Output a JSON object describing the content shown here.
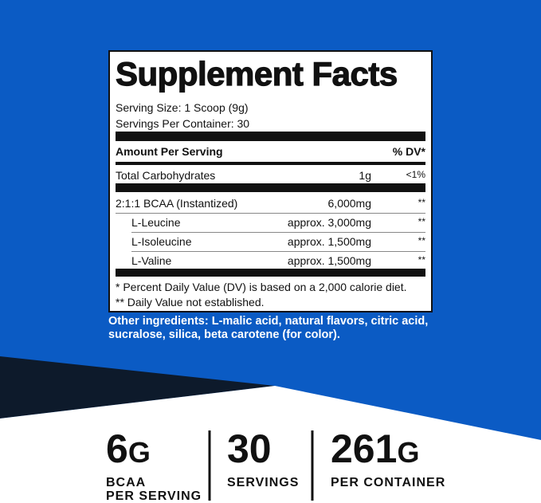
{
  "panel": {
    "title": "Supplement Facts",
    "serving_size": "Serving Size: 1 Scoop (9g)",
    "servings_per_container": "Servings Per Container: 30",
    "header": [
      "Amount Per Serving",
      "% DV*"
    ],
    "rows": [
      [
        "Total Carbohydrates",
        "1g",
        "<1%"
      ],
      [
        "2:1:1 BCAA (Instantized)",
        "6,000mg",
        "**"
      ],
      [
        "L-Leucine",
        "approx. 3,000mg",
        "**"
      ],
      [
        "L-Isoleucine",
        "approx. 1,500mg",
        "**"
      ],
      [
        "L-Valine",
        "approx. 1,500mg",
        "**"
      ]
    ],
    "footnotes": [
      "* Percent Daily Value (DV) is based on a 2,000 calorie diet.",
      "** Daily Value not established."
    ]
  },
  "other_ingredients": [
    "Other ingredients: L-malic acid, natural flavors, citric acid,",
    "sucralose, silica, beta carotene (for color)."
  ],
  "stats": [
    {
      "value": "6",
      "unit": "G",
      "label": [
        "BCAA",
        "PER SERVING"
      ]
    },
    {
      "value": "30",
      "unit": "",
      "label": [
        "SERVINGS"
      ]
    },
    {
      "value": "261",
      "unit": "G",
      "label": [
        "PER CONTAINER"
      ]
    }
  ]
}
